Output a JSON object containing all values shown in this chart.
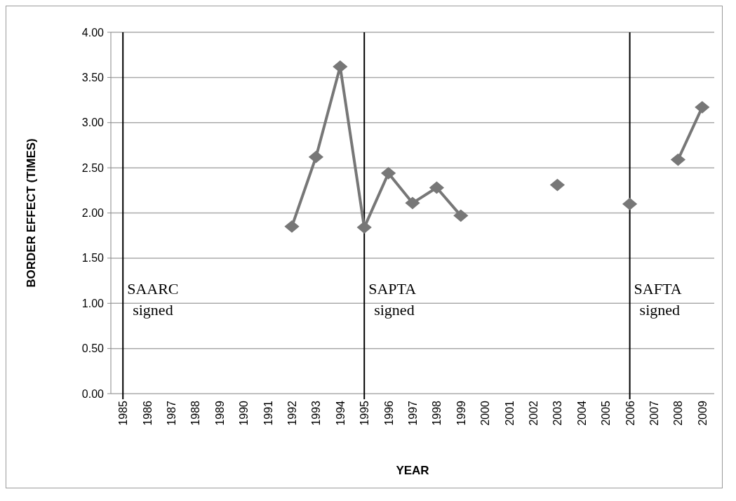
{
  "chart_data": {
    "type": "line",
    "xlabel": "YEAR",
    "ylabel": "BORDER EFFECT (TIMES)",
    "categories": [
      "1985",
      "1986",
      "1987",
      "1988",
      "1989",
      "1990",
      "1991",
      "1992",
      "1993",
      "1994",
      "1995",
      "1996",
      "1997",
      "1998",
      "1999",
      "2000",
      "2001",
      "2002",
      "2003",
      "2004",
      "2005",
      "2006",
      "2007",
      "2008",
      "2009"
    ],
    "series": [
      {
        "color": "#777777",
        "values": [
          null,
          null,
          null,
          null,
          null,
          null,
          null,
          1.85,
          2.62,
          3.62,
          1.84,
          2.44,
          2.11,
          2.28,
          1.97,
          null,
          null,
          null,
          2.31,
          null,
          null,
          2.1,
          null,
          2.59,
          3.17
        ]
      }
    ],
    "ylim": [
      0,
      4
    ],
    "yticks": [
      {
        "value": 0,
        "label": "0.00"
      },
      {
        "value": 0.5,
        "label": "0.50"
      },
      {
        "value": 1,
        "label": "1.00"
      },
      {
        "value": 1.5,
        "label": "1.50"
      },
      {
        "value": 2,
        "label": "2.00"
      },
      {
        "value": 2.5,
        "label": "2.50"
      },
      {
        "value": 3,
        "label": "3.00"
      },
      {
        "value": 3.5,
        "label": "3.50"
      },
      {
        "value": 4,
        "label": "4.00"
      }
    ],
    "grid": "y",
    "marker": "diamond",
    "line_style": "solid",
    "ref_lines": [
      {
        "axis": "x",
        "value": "1985",
        "label": "SAARC\nsigned",
        "color": "#000000"
      },
      {
        "axis": "x",
        "value": "1995",
        "label": "SAPTA\nsigned",
        "color": "#000000"
      },
      {
        "axis": "x",
        "value": "2006",
        "label": "SAFTA\nsigned",
        "color": "#000000"
      }
    ]
  }
}
